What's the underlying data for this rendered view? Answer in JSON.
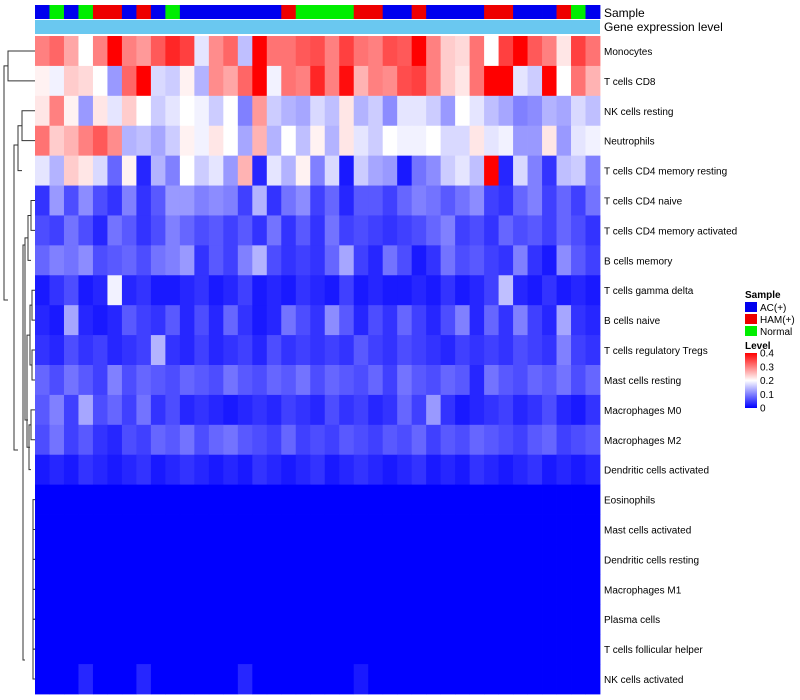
{
  "chart_data": {
    "type": "heatmap",
    "annotation_tracks": [
      "Sample",
      "Gene expression level"
    ],
    "rows": [
      "Monocytes",
      "T cells CD8",
      "NK cells resting",
      "Neutrophils",
      "T cells CD4 memory resting",
      "T cells CD4 naive",
      "T cells CD4 memory activated",
      "B cells memory",
      "T cells gamma delta",
      "B cells naive",
      "T cells regulatory  Tregs",
      "Mast cells resting",
      "Macrophages M0",
      "Macrophages M2",
      "Dendritic cells activated",
      "Eosinophils",
      "Mast cells activated",
      "Dendritic cells resting",
      "Macrophages M1",
      "Plasma cells",
      "T cells follicular helper",
      "NK cells activated"
    ],
    "n_samples": 39,
    "sample_groups": [
      "AC(+)",
      "Normal",
      "AC(+)",
      "Normal",
      "HAM(+)",
      "HAM(+)",
      "AC(+)",
      "HAM(+)",
      "AC(+)",
      "Normal",
      "AC(+)",
      "AC(+)",
      "AC(+)",
      "AC(+)",
      "AC(+)",
      "AC(+)",
      "AC(+)",
      "HAM(+)",
      "Normal",
      "Normal",
      "Normal",
      "Normal",
      "HAM(+)",
      "HAM(+)",
      "AC(+)",
      "AC(+)",
      "HAM(+)",
      "AC(+)",
      "AC(+)",
      "AC(+)",
      "AC(+)",
      "HAM(+)",
      "HAM(+)",
      "AC(+)",
      "AC(+)",
      "AC(+)",
      "HAM(+)",
      "Normal",
      "AC(+)"
    ],
    "values": [
      [
        0.3,
        0.32,
        0.27,
        0.2,
        0.3,
        0.4,
        0.3,
        0.28,
        0.33,
        0.37,
        0.35,
        0.18,
        0.29,
        0.32,
        0.15,
        0.4,
        0.31,
        0.31,
        0.33,
        0.34,
        0.3,
        0.35,
        0.31,
        0.3,
        0.34,
        0.33,
        0.41,
        0.3,
        0.24,
        0.23,
        0.31,
        0.2,
        0.35,
        0.41,
        0.33,
        0.3,
        0.22,
        0.35,
        0.31
      ],
      [
        0.21,
        0.19,
        0.24,
        0.23,
        0.2,
        0.12,
        0.32,
        0.4,
        0.17,
        0.16,
        0.21,
        0.14,
        0.29,
        0.27,
        0.32,
        0.41,
        0.19,
        0.31,
        0.3,
        0.37,
        0.3,
        0.39,
        0.26,
        0.3,
        0.29,
        0.34,
        0.35,
        0.3,
        0.24,
        0.22,
        0.31,
        0.42,
        0.4,
        0.18,
        0.16,
        0.41,
        0.2,
        0.31,
        0.26
      ],
      [
        0.22,
        0.3,
        0.21,
        0.12,
        0.22,
        0.18,
        0.24,
        0.2,
        0.16,
        0.18,
        0.2,
        0.19,
        0.16,
        0.2,
        0.1,
        0.28,
        0.16,
        0.14,
        0.13,
        0.17,
        0.15,
        0.22,
        0.14,
        0.16,
        0.11,
        0.18,
        0.18,
        0.16,
        0.12,
        0.2,
        0.18,
        0.15,
        0.13,
        0.1,
        0.11,
        0.14,
        0.13,
        0.17,
        0.15
      ],
      [
        0.31,
        0.24,
        0.26,
        0.3,
        0.33,
        0.29,
        0.14,
        0.15,
        0.13,
        0.16,
        0.21,
        0.19,
        0.22,
        0.2,
        0.13,
        0.26,
        0.14,
        0.2,
        0.15,
        0.21,
        0.14,
        0.22,
        0.18,
        0.16,
        0.2,
        0.19,
        0.19,
        0.2,
        0.17,
        0.17,
        0.22,
        0.18,
        0.19,
        0.12,
        0.12,
        0.22,
        0.12,
        0.18,
        0.19
      ],
      [
        0.18,
        0.14,
        0.24,
        0.22,
        0.17,
        0.08,
        0.21,
        0.03,
        0.14,
        0.1,
        0.2,
        0.16,
        0.18,
        0.12,
        0.26,
        0.03,
        0.18,
        0.14,
        0.21,
        0.1,
        0.17,
        0.02,
        0.16,
        0.13,
        0.12,
        0.02,
        0.09,
        0.11,
        0.16,
        0.18,
        0.15,
        0.43,
        0.03,
        0.17,
        0.1,
        0.04,
        0.15,
        0.16,
        0.1
      ],
      [
        0.04,
        0.12,
        0.06,
        0.11,
        0.06,
        0.04,
        0.1,
        0.04,
        0.07,
        0.12,
        0.12,
        0.1,
        0.11,
        0.1,
        0.05,
        0.14,
        0.04,
        0.09,
        0.11,
        0.05,
        0.08,
        0.03,
        0.07,
        0.07,
        0.05,
        0.08,
        0.1,
        0.09,
        0.07,
        0.09,
        0.11,
        0.05,
        0.04,
        0.08,
        0.1,
        0.05,
        0.08,
        0.05,
        0.09
      ],
      [
        0.06,
        0.05,
        0.09,
        0.06,
        0.03,
        0.09,
        0.07,
        0.04,
        0.06,
        0.1,
        0.08,
        0.06,
        0.07,
        0.05,
        0.07,
        0.04,
        0.09,
        0.04,
        0.07,
        0.04,
        0.09,
        0.05,
        0.06,
        0.05,
        0.04,
        0.05,
        0.06,
        0.08,
        0.1,
        0.05,
        0.06,
        0.04,
        0.08,
        0.06,
        0.07,
        0.05,
        0.08,
        0.06,
        0.04
      ],
      [
        0.08,
        0.1,
        0.09,
        0.11,
        0.06,
        0.07,
        0.08,
        0.06,
        0.09,
        0.1,
        0.12,
        0.04,
        0.07,
        0.05,
        0.1,
        0.14,
        0.06,
        0.04,
        0.05,
        0.04,
        0.08,
        0.13,
        0.05,
        0.03,
        0.09,
        0.06,
        0.02,
        0.04,
        0.09,
        0.06,
        0.07,
        0.05,
        0.04,
        0.1,
        0.04,
        0.02,
        0.11,
        0.07,
        0.05
      ],
      [
        0.02,
        0.04,
        0.06,
        0.02,
        0.03,
        0.19,
        0.03,
        0.04,
        0.02,
        0.02,
        0.03,
        0.04,
        0.02,
        0.03,
        0.05,
        0.02,
        0.03,
        0.02,
        0.04,
        0.03,
        0.02,
        0.05,
        0.02,
        0.03,
        0.02,
        0.02,
        0.03,
        0.02,
        0.04,
        0.02,
        0.03,
        0.05,
        0.15,
        0.03,
        0.02,
        0.04,
        0.02,
        0.03,
        0.02
      ],
      [
        0.03,
        0.02,
        0.13,
        0.03,
        0.02,
        0.03,
        0.07,
        0.05,
        0.04,
        0.07,
        0.03,
        0.06,
        0.03,
        0.08,
        0.04,
        0.02,
        0.03,
        0.09,
        0.06,
        0.04,
        0.11,
        0.07,
        0.03,
        0.06,
        0.04,
        0.08,
        0.05,
        0.03,
        0.06,
        0.1,
        0.03,
        0.08,
        0.04,
        0.1,
        0.05,
        0.03,
        0.13,
        0.04,
        0.03
      ],
      [
        0.04,
        0.03,
        0.06,
        0.04,
        0.05,
        0.03,
        0.04,
        0.05,
        0.14,
        0.04,
        0.03,
        0.05,
        0.03,
        0.04,
        0.05,
        0.03,
        0.06,
        0.04,
        0.05,
        0.04,
        0.05,
        0.04,
        0.07,
        0.05,
        0.04,
        0.06,
        0.05,
        0.04,
        0.03,
        0.05,
        0.04,
        0.05,
        0.04,
        0.06,
        0.05,
        0.04,
        0.1,
        0.05,
        0.04
      ],
      [
        0.08,
        0.06,
        0.09,
        0.07,
        0.05,
        0.1,
        0.06,
        0.08,
        0.07,
        0.06,
        0.08,
        0.07,
        0.06,
        0.09,
        0.07,
        0.06,
        0.08,
        0.07,
        0.09,
        0.06,
        0.08,
        0.07,
        0.06,
        0.08,
        0.05,
        0.09,
        0.07,
        0.06,
        0.08,
        0.07,
        0.03,
        0.09,
        0.07,
        0.06,
        0.08,
        0.07,
        0.09,
        0.06,
        0.08
      ],
      [
        0.07,
        0.1,
        0.05,
        0.13,
        0.06,
        0.08,
        0.05,
        0.09,
        0.04,
        0.06,
        0.03,
        0.04,
        0.03,
        0.02,
        0.03,
        0.04,
        0.03,
        0.05,
        0.04,
        0.03,
        0.06,
        0.04,
        0.05,
        0.03,
        0.04,
        0.08,
        0.05,
        0.12,
        0.04,
        0.02,
        0.03,
        0.04,
        0.05,
        0.03,
        0.04,
        0.06,
        0.03,
        0.02,
        0.04
      ],
      [
        0.06,
        0.09,
        0.05,
        0.07,
        0.04,
        0.03,
        0.06,
        0.05,
        0.08,
        0.07,
        0.09,
        0.06,
        0.08,
        0.09,
        0.07,
        0.06,
        0.05,
        0.08,
        0.05,
        0.06,
        0.05,
        0.07,
        0.06,
        0.05,
        0.07,
        0.06,
        0.08,
        0.05,
        0.07,
        0.06,
        0.08,
        0.07,
        0.06,
        0.05,
        0.07,
        0.08,
        0.05,
        0.06,
        0.07
      ],
      [
        0.02,
        0.03,
        0.02,
        0.04,
        0.03,
        0.02,
        0.03,
        0.04,
        0.02,
        0.03,
        0.04,
        0.03,
        0.02,
        0.03,
        0.02,
        0.04,
        0.03,
        0.02,
        0.03,
        0.04,
        0.02,
        0.03,
        0.04,
        0.03,
        0.02,
        0.03,
        0.04,
        0.02,
        0.03,
        0.02,
        0.04,
        0.03,
        0.02,
        0.03,
        0.04,
        0.02,
        0.03,
        0.02,
        0.03
      ],
      [
        0.0,
        0.0,
        0.0,
        0.0,
        0.0,
        0.0,
        0.0,
        0.0,
        0.0,
        0.0,
        0.0,
        0.0,
        0.0,
        0.0,
        0.0,
        0.0,
        0.0,
        0.0,
        0.0,
        0.0,
        0.0,
        0.0,
        0.0,
        0.0,
        0.0,
        0.0,
        0.0,
        0.0,
        0.0,
        0.0,
        0.0,
        0.0,
        0.0,
        0.0,
        0.0,
        0.0,
        0.0,
        0.0,
        0.0
      ],
      [
        0.0,
        0.0,
        0.0,
        0.0,
        0.0,
        0.0,
        0.0,
        0.0,
        0.0,
        0.0,
        0.0,
        0.0,
        0.0,
        0.0,
        0.0,
        0.0,
        0.0,
        0.0,
        0.0,
        0.0,
        0.0,
        0.0,
        0.0,
        0.0,
        0.0,
        0.0,
        0.0,
        0.0,
        0.0,
        0.0,
        0.0,
        0.0,
        0.0,
        0.0,
        0.0,
        0.0,
        0.0,
        0.0,
        0.0
      ],
      [
        0.0,
        0.0,
        0.0,
        0.0,
        0.0,
        0.0,
        0.0,
        0.0,
        0.0,
        0.0,
        0.0,
        0.0,
        0.0,
        0.0,
        0.0,
        0.0,
        0.0,
        0.0,
        0.0,
        0.0,
        0.0,
        0.0,
        0.0,
        0.0,
        0.0,
        0.0,
        0.0,
        0.0,
        0.0,
        0.0,
        0.0,
        0.0,
        0.0,
        0.0,
        0.0,
        0.0,
        0.0,
        0.0,
        0.0
      ],
      [
        0.0,
        0.0,
        0.0,
        0.0,
        0.0,
        0.0,
        0.0,
        0.0,
        0.0,
        0.0,
        0.0,
        0.0,
        0.0,
        0.0,
        0.0,
        0.0,
        0.0,
        0.0,
        0.0,
        0.0,
        0.0,
        0.0,
        0.0,
        0.0,
        0.0,
        0.0,
        0.0,
        0.0,
        0.0,
        0.0,
        0.0,
        0.0,
        0.0,
        0.0,
        0.0,
        0.0,
        0.0,
        0.0,
        0.0
      ],
      [
        0.0,
        0.0,
        0.0,
        0.0,
        0.0,
        0.0,
        0.0,
        0.0,
        0.0,
        0.0,
        0.0,
        0.0,
        0.0,
        0.0,
        0.0,
        0.0,
        0.0,
        0.0,
        0.0,
        0.0,
        0.0,
        0.0,
        0.0,
        0.0,
        0.0,
        0.0,
        0.0,
        0.0,
        0.0,
        0.0,
        0.0,
        0.0,
        0.0,
        0.0,
        0.0,
        0.0,
        0.0,
        0.0,
        0.0
      ],
      [
        0.0,
        0.0,
        0.0,
        0.0,
        0.0,
        0.0,
        0.0,
        0.0,
        0.0,
        0.0,
        0.0,
        0.0,
        0.0,
        0.0,
        0.0,
        0.0,
        0.0,
        0.0,
        0.0,
        0.0,
        0.0,
        0.0,
        0.0,
        0.0,
        0.0,
        0.0,
        0.0,
        0.0,
        0.0,
        0.0,
        0.0,
        0.0,
        0.0,
        0.0,
        0.0,
        0.0,
        0.0,
        0.0,
        0.0
      ],
      [
        0.0,
        0.0,
        0.0,
        0.03,
        0.0,
        0.0,
        0.0,
        0.03,
        0.0,
        0.0,
        0.0,
        0.0,
        0.0,
        0.0,
        0.03,
        0.0,
        0.0,
        0.0,
        0.0,
        0.0,
        0.0,
        0.0,
        0.02,
        0.0,
        0.0,
        0.0,
        0.0,
        0.0,
        0.0,
        0.0,
        0.0,
        0.0,
        0.0,
        0.0,
        0.0,
        0.0,
        0.0,
        0.0,
        0.0
      ]
    ],
    "legend": {
      "sample_title": "Sample",
      "groups": [
        {
          "label": "AC(+)",
          "color": "#0000ee"
        },
        {
          "label": "HAM(+)",
          "color": "#ee0000"
        },
        {
          "label": "Normal",
          "color": "#00ee00"
        }
      ],
      "level_title": "Level",
      "level_ticks": [
        "0.4",
        "0.3",
        "0.2",
        "0.1",
        "0"
      ],
      "level_range": [
        0,
        0.4
      ],
      "level_colors": [
        "#0000ff",
        "#ffffff",
        "#ff0000"
      ]
    },
    "gene_expression_color": "#6ac8f0"
  }
}
